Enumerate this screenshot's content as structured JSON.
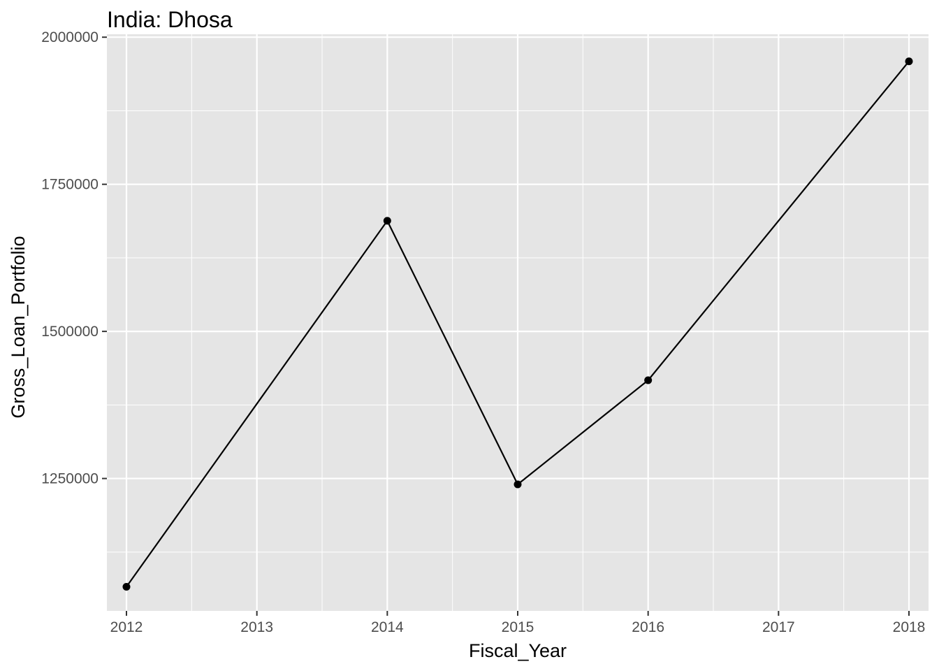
{
  "chart_data": {
    "type": "line",
    "title": "India:  Dhosa",
    "xlabel": "Fiscal_Year",
    "ylabel": "Gross_Loan_Portfolio",
    "x_ticks": [
      "2012",
      "2013",
      "2014",
      "2015",
      "2016",
      "2017",
      "2018"
    ],
    "y_ticks": [
      "1250000",
      "1500000",
      "1750000",
      "2000000"
    ],
    "xlim": [
      2011.85,
      2018.15
    ],
    "ylim": [
      1025000,
      2005000
    ],
    "grid": true,
    "legend": "none",
    "series": [
      {
        "x": [
          2012,
          2014,
          2015,
          2016,
          2018
        ],
        "y": [
          1066000,
          1688000,
          1240000,
          1417000,
          1959000
        ]
      }
    ],
    "colors": {
      "panel": "#e5e5e5",
      "grid": "#ffffff",
      "line": "#000000",
      "tick_text": "#4d4d4d"
    }
  }
}
